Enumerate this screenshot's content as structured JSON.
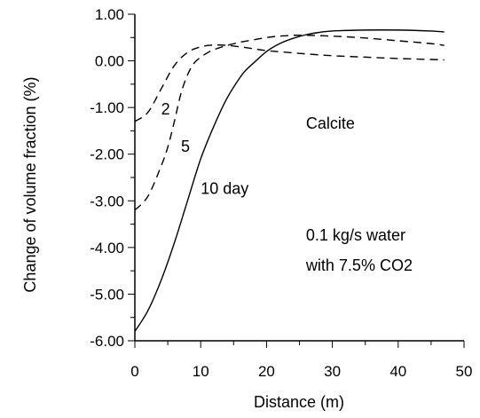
{
  "chart_data": {
    "type": "line",
    "xlabel": "Distance (m)",
    "ylabel": "Change of volume fraction (%)",
    "xlim": [
      0,
      50
    ],
    "ylim": [
      -6.0,
      1.0
    ],
    "x_ticks": [
      "0",
      "10",
      "20",
      "30",
      "40",
      "50"
    ],
    "y_ticks": [
      "1.00",
      "0.00",
      "-1.00",
      "-2.00",
      "-3.00",
      "-4.00",
      "-5.00",
      "-6.00"
    ],
    "grid": false,
    "legend": "none",
    "annotations": {
      "mineral": "Calcite",
      "condition_line1": "0.1 kg/s water",
      "condition_line2": "with 7.5% CO2"
    },
    "series": [
      {
        "name": "2",
        "style": "dashed",
        "x": [
          0,
          2,
          4,
          6,
          8,
          10,
          12,
          14,
          16,
          18,
          20,
          25,
          30,
          35,
          40,
          45,
          47
        ],
        "y": [
          -1.3,
          -1.1,
          -0.6,
          -0.1,
          0.18,
          0.3,
          0.34,
          0.33,
          0.3,
          0.26,
          0.22,
          0.16,
          0.11,
          0.08,
          0.05,
          0.03,
          0.02
        ]
      },
      {
        "name": "5",
        "style": "dashed",
        "x": [
          0,
          2,
          4,
          5,
          6,
          7,
          8,
          9,
          10,
          11,
          12,
          14,
          16,
          18,
          20,
          22,
          25,
          30,
          35,
          40,
          45,
          47
        ],
        "y": [
          -3.2,
          -2.9,
          -2.25,
          -1.85,
          -1.3,
          -0.7,
          -0.3,
          -0.05,
          0.08,
          0.17,
          0.24,
          0.33,
          0.4,
          0.45,
          0.5,
          0.53,
          0.55,
          0.53,
          0.49,
          0.43,
          0.37,
          0.33
        ]
      },
      {
        "name": "10 day",
        "style": "solid",
        "x": [
          0,
          2,
          4,
          6,
          8,
          10,
          12,
          14,
          16,
          17,
          18,
          20,
          22,
          24,
          26,
          28,
          30,
          35,
          40,
          45,
          47
        ],
        "y": [
          -5.8,
          -5.35,
          -4.7,
          -3.9,
          -3.0,
          -2.1,
          -1.4,
          -0.8,
          -0.35,
          -0.18,
          -0.05,
          0.2,
          0.37,
          0.48,
          0.56,
          0.61,
          0.64,
          0.66,
          0.66,
          0.64,
          0.62
        ]
      }
    ],
    "series_labels": [
      {
        "text": "2",
        "at": [
          4,
          -1.15
        ]
      },
      {
        "text": "5",
        "at": [
          7,
          -1.95
        ]
      },
      {
        "text": "10 day",
        "at": [
          10,
          -2.85
        ]
      }
    ],
    "annotation_positions": {
      "mineral": [
        26,
        -1.45
      ],
      "condition_line1": [
        26,
        -3.85
      ],
      "condition_line2": [
        26,
        -4.5
      ]
    }
  }
}
